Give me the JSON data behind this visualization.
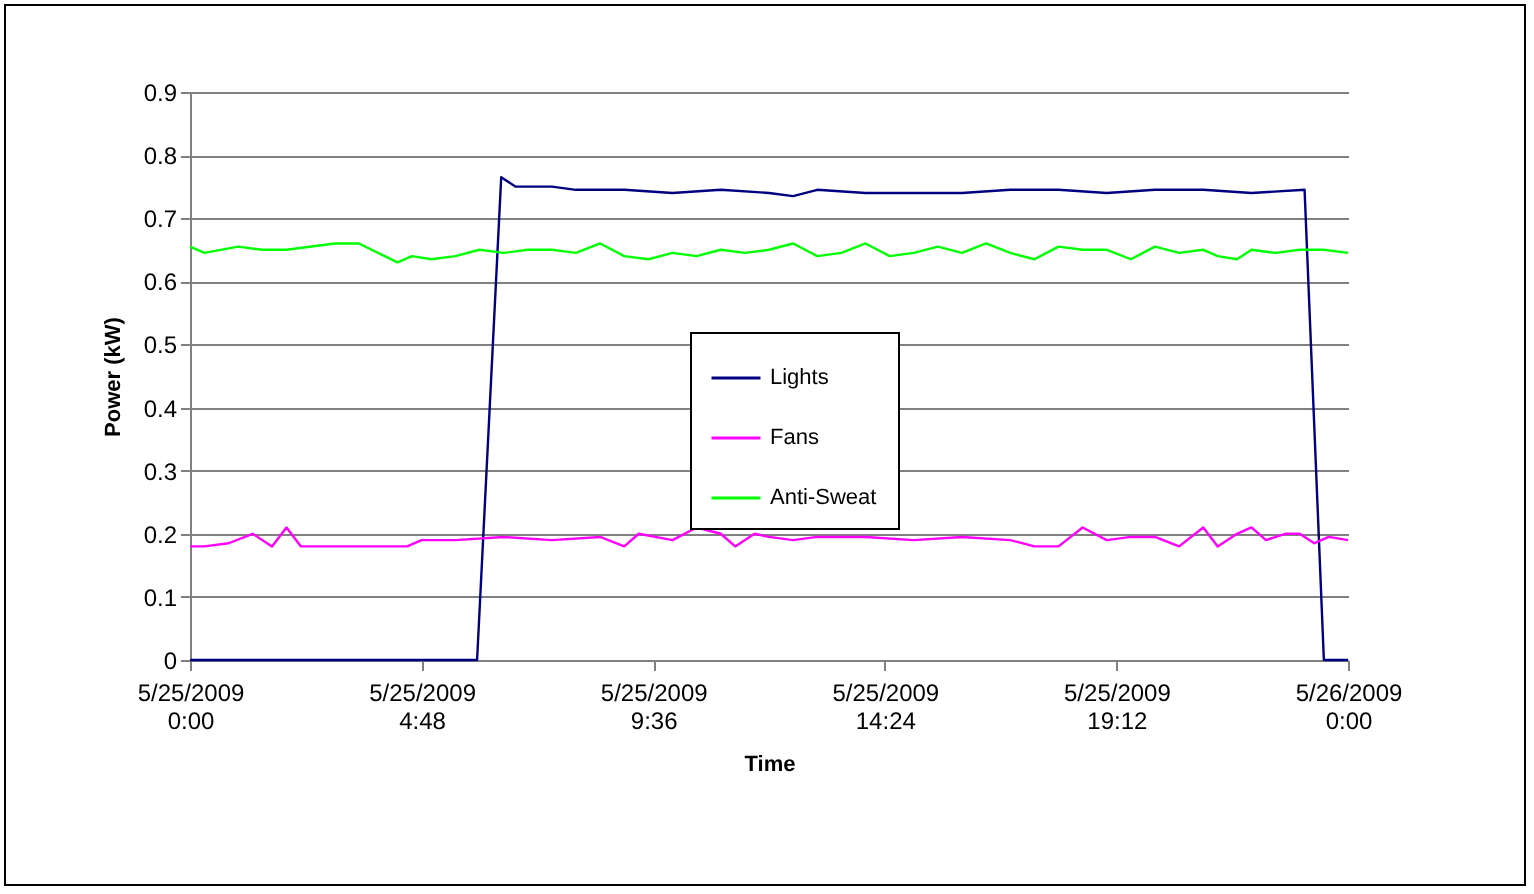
{
  "chart_data": {
    "type": "line",
    "xlabel": "Time",
    "ylabel": "Power (kW)",
    "xlim": [
      "2009-05-25T00:00",
      "2009-05-26T00:00"
    ],
    "xticks": [
      {
        "value": "2009-05-25T00:00",
        "label": "5/25/2009 0:00"
      },
      {
        "value": "2009-05-25T04:48",
        "label": "5/25/2009 4:48"
      },
      {
        "value": "2009-05-25T09:36",
        "label": "5/25/2009 9:36"
      },
      {
        "value": "2009-05-25T14:24",
        "label": "5/25/2009 14:24"
      },
      {
        "value": "2009-05-25T19:12",
        "label": "5/25/2009 19:12"
      },
      {
        "value": "2009-05-26T00:00",
        "label": "5/26/2009 0:00"
      }
    ],
    "ylim": [
      0,
      0.9
    ],
    "yticks": [
      0,
      0.1,
      0.2,
      0.3,
      0.4,
      0.5,
      0.6,
      0.7,
      0.8,
      0.9
    ],
    "grid": "y",
    "legend": "center",
    "series": [
      {
        "name": "Lights",
        "color": "#000080",
        "x": [
          "2009-05-25T00:00",
          "2009-05-25T05:57",
          "2009-05-25T06:27",
          "2009-05-25T06:45",
          "2009-05-25T07:30",
          "2009-05-25T08:00",
          "2009-05-25T09:00",
          "2009-05-25T10:00",
          "2009-05-25T11:00",
          "2009-05-25T12:00",
          "2009-05-25T12:30",
          "2009-05-25T13:00",
          "2009-05-25T14:00",
          "2009-05-25T15:00",
          "2009-05-25T16:00",
          "2009-05-25T17:00",
          "2009-05-25T18:00",
          "2009-05-25T19:00",
          "2009-05-25T20:00",
          "2009-05-25T21:00",
          "2009-05-25T22:00",
          "2009-05-25T23:06",
          "2009-05-25T23:30",
          "2009-05-26T00:00"
        ],
        "values": [
          0,
          0,
          0.765,
          0.75,
          0.75,
          0.745,
          0.745,
          0.74,
          0.745,
          0.74,
          0.735,
          0.745,
          0.74,
          0.74,
          0.74,
          0.745,
          0.745,
          0.74,
          0.745,
          0.745,
          0.74,
          0.745,
          0,
          0
        ]
      },
      {
        "name": "Fans",
        "color": "#ff00ff",
        "x": [
          "2009-05-25T00:00",
          "2009-05-25T00:18",
          "2009-05-25T00:48",
          "2009-05-25T01:18",
          "2009-05-25T01:42",
          "2009-05-25T02:00",
          "2009-05-25T02:18",
          "2009-05-25T02:42",
          "2009-05-25T03:30",
          "2009-05-25T04:30",
          "2009-05-25T04:48",
          "2009-05-25T05:30",
          "2009-05-25T06:30",
          "2009-05-25T07:30",
          "2009-05-25T08:30",
          "2009-05-25T09:00",
          "2009-05-25T09:18",
          "2009-05-25T10:00",
          "2009-05-25T10:30",
          "2009-05-25T11:00",
          "2009-05-25T11:18",
          "2009-05-25T11:42",
          "2009-05-25T12:00",
          "2009-05-25T12:30",
          "2009-05-25T13:00",
          "2009-05-25T14:00",
          "2009-05-25T15:00",
          "2009-05-25T16:00",
          "2009-05-25T17:00",
          "2009-05-25T17:30",
          "2009-05-25T18:00",
          "2009-05-25T18:30",
          "2009-05-25T19:00",
          "2009-05-25T19:30",
          "2009-05-25T20:00",
          "2009-05-25T20:30",
          "2009-05-25T21:00",
          "2009-05-25T21:18",
          "2009-05-25T21:42",
          "2009-05-25T22:00",
          "2009-05-25T22:18",
          "2009-05-25T22:42",
          "2009-05-25T23:00",
          "2009-05-25T23:18",
          "2009-05-25T23:36",
          "2009-05-26T00:00"
        ],
        "values": [
          0.18,
          0.18,
          0.185,
          0.2,
          0.18,
          0.21,
          0.18,
          0.18,
          0.18,
          0.18,
          0.19,
          0.19,
          0.195,
          0.19,
          0.195,
          0.18,
          0.2,
          0.19,
          0.21,
          0.2,
          0.18,
          0.2,
          0.195,
          0.19,
          0.195,
          0.195,
          0.19,
          0.195,
          0.19,
          0.18,
          0.18,
          0.21,
          0.19,
          0.195,
          0.195,
          0.18,
          0.21,
          0.18,
          0.2,
          0.21,
          0.19,
          0.2,
          0.2,
          0.185,
          0.195,
          0.19
        ]
      },
      {
        "name": "Anti-Sweat",
        "color": "#00ff00",
        "x": [
          "2009-05-25T00:00",
          "2009-05-25T00:18",
          "2009-05-25T01:00",
          "2009-05-25T01:30",
          "2009-05-25T02:00",
          "2009-05-25T03:00",
          "2009-05-25T03:30",
          "2009-05-25T04:18",
          "2009-05-25T04:36",
          "2009-05-25T05:00",
          "2009-05-25T05:30",
          "2009-05-25T06:00",
          "2009-05-25T06:30",
          "2009-05-25T07:00",
          "2009-05-25T07:30",
          "2009-05-25T08:00",
          "2009-05-25T08:30",
          "2009-05-25T09:00",
          "2009-05-25T09:30",
          "2009-05-25T10:00",
          "2009-05-25T10:30",
          "2009-05-25T11:00",
          "2009-05-25T11:30",
          "2009-05-25T12:00",
          "2009-05-25T12:30",
          "2009-05-25T13:00",
          "2009-05-25T13:30",
          "2009-05-25T14:00",
          "2009-05-25T14:30",
          "2009-05-25T15:00",
          "2009-05-25T15:30",
          "2009-05-25T16:00",
          "2009-05-25T16:30",
          "2009-05-25T17:00",
          "2009-05-25T17:30",
          "2009-05-25T18:00",
          "2009-05-25T18:30",
          "2009-05-25T19:00",
          "2009-05-25T19:30",
          "2009-05-25T20:00",
          "2009-05-25T20:30",
          "2009-05-25T21:00",
          "2009-05-25T21:18",
          "2009-05-25T21:42",
          "2009-05-25T22:00",
          "2009-05-25T22:30",
          "2009-05-25T23:00",
          "2009-05-25T23:30",
          "2009-05-26T00:00"
        ],
        "values": [
          0.655,
          0.645,
          0.655,
          0.65,
          0.65,
          0.66,
          0.66,
          0.63,
          0.64,
          0.635,
          0.64,
          0.65,
          0.645,
          0.65,
          0.65,
          0.645,
          0.66,
          0.64,
          0.635,
          0.645,
          0.64,
          0.65,
          0.645,
          0.65,
          0.66,
          0.64,
          0.645,
          0.66,
          0.64,
          0.645,
          0.655,
          0.645,
          0.66,
          0.645,
          0.635,
          0.655,
          0.65,
          0.65,
          0.635,
          0.655,
          0.645,
          0.65,
          0.64,
          0.635,
          0.65,
          0.645,
          0.65,
          0.65,
          0.645
        ]
      }
    ]
  }
}
